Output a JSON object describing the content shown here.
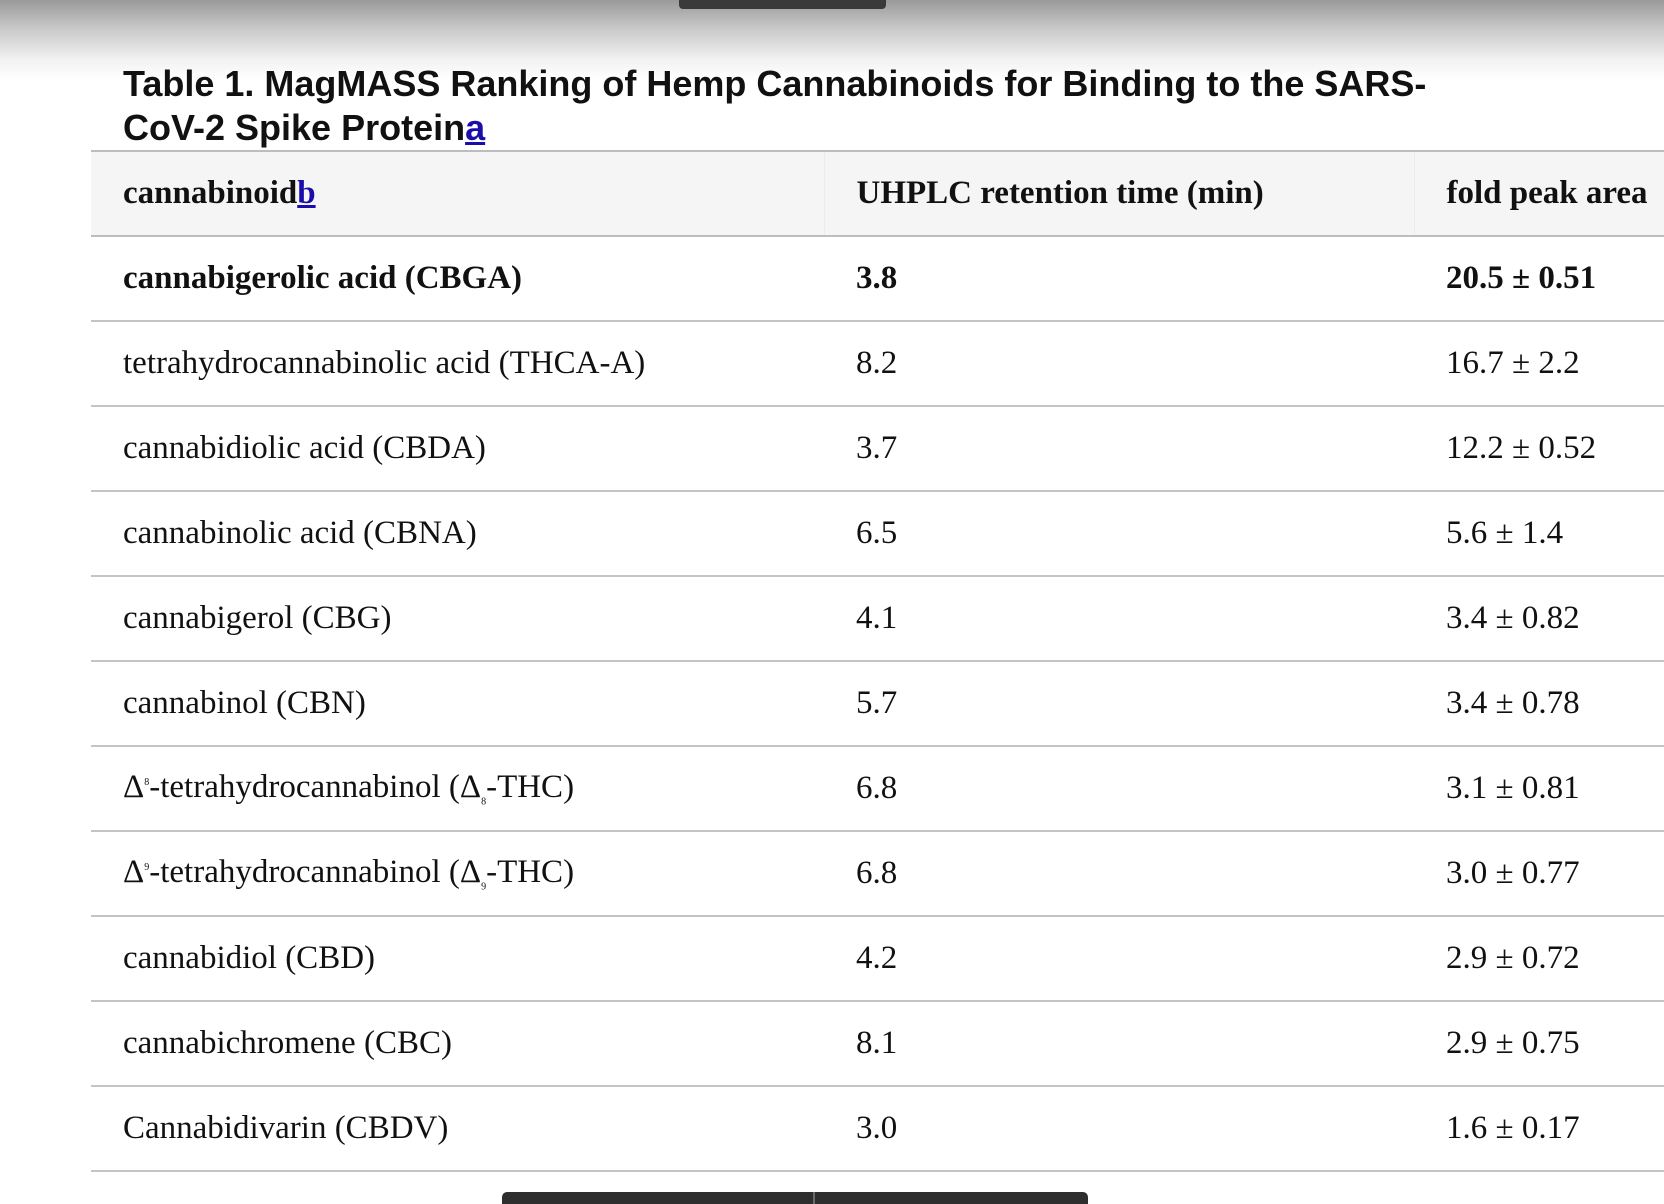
{
  "title": {
    "text": "Table 1. MagMASS Ranking of Hemp Cannabinoids for Binding to the SARS-CoV-2 Spike Protein",
    "footnote_link": "a"
  },
  "table": {
    "headers": {
      "cannabinoid": "cannabinoid",
      "cannabinoid_footnote": "b",
      "retention_time": "UHPLC retention time (min)",
      "fold_peak_area": "fold peak area"
    },
    "rows": [
      {
        "name": "cannabigerolic acid (CBGA)",
        "retention": "3.8",
        "fold": "20.5 ± 0.51",
        "bold": true
      },
      {
        "name": "tetrahydrocannabinolic acid (THCA-A)",
        "retention": "8.2",
        "fold": "16.7 ± 2.2",
        "bold": false
      },
      {
        "name": "cannabidiolic acid (CBDA)",
        "retention": "3.7",
        "fold": "12.2 ± 0.52",
        "bold": false
      },
      {
        "name": "cannabinolic acid (CBNA)",
        "retention": "6.5",
        "fold": "5.6 ± 1.4",
        "bold": false
      },
      {
        "name": "cannabigerol (CBG)",
        "retention": "4.1",
        "fold": "3.4 ± 0.82",
        "bold": false
      },
      {
        "name": "cannabinol (CBN)",
        "retention": "5.7",
        "fold": "3.4 ± 0.78",
        "bold": false
      },
      {
        "name_parts": {
          "delta": "Δ",
          "sup": "8",
          "rest": "-tetrahydrocannabinol (Δ",
          "sub": "8",
          "end": "-THC)"
        },
        "retention": "6.8",
        "fold": "3.1 ± 0.81",
        "bold": false
      },
      {
        "name_parts": {
          "delta": "Δ",
          "sup": "9",
          "rest": "-tetrahydrocannabinol (Δ",
          "sub": "9",
          "end": "-THC)"
        },
        "retention": "6.8",
        "fold": "3.0 ± 0.77",
        "bold": false
      },
      {
        "name": "cannabidiol (CBD)",
        "retention": "4.2",
        "fold": "2.9 ± 0.72",
        "bold": false
      },
      {
        "name": "cannabichromene (CBC)",
        "retention": "8.1",
        "fold": "2.9 ± 0.75",
        "bold": false
      },
      {
        "name": "Cannabidivarin (CBDV)",
        "retention": "3.0",
        "fold": "1.6 ± 0.17",
        "bold": false
      }
    ]
  },
  "colors": {
    "link": "#1a0dab",
    "header_bg": "#f5f5f5",
    "row_border": "#c4c4c4",
    "text": "#111111"
  }
}
